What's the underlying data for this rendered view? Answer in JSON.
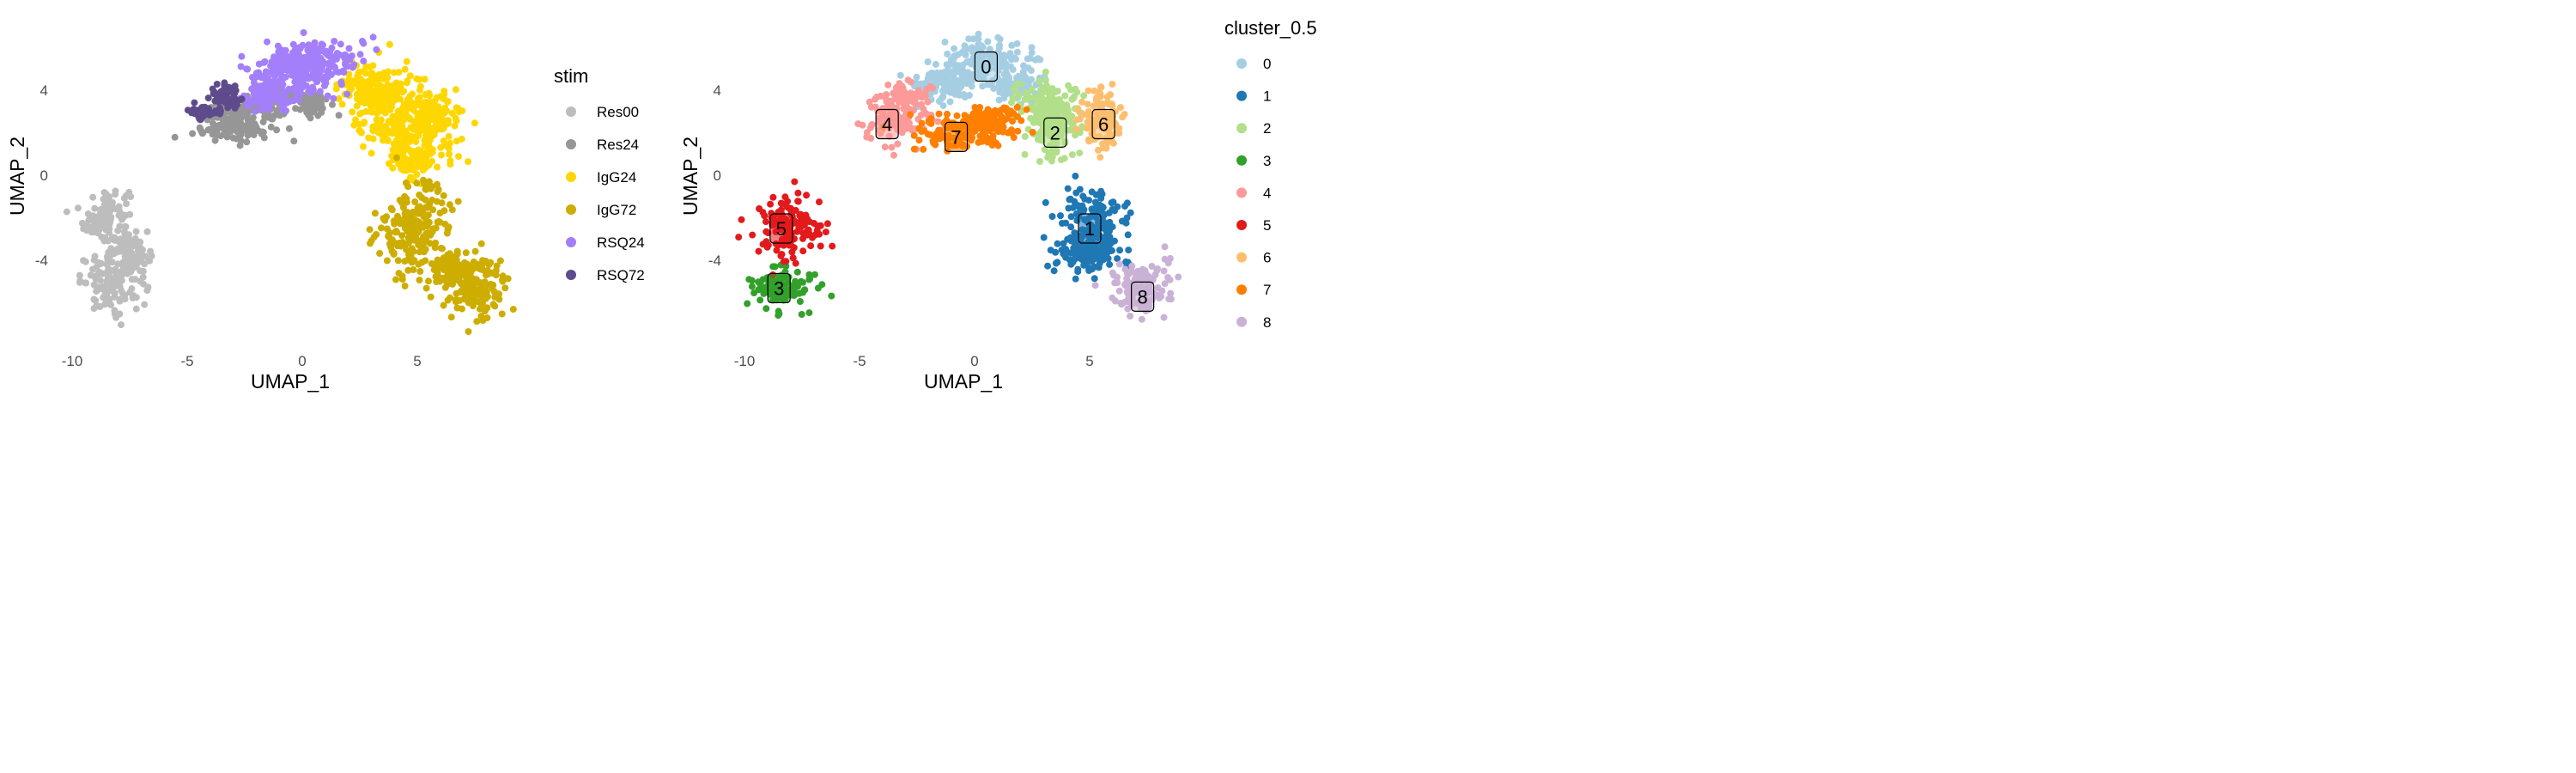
{
  "chart_data": [
    {
      "type": "scatter",
      "xlabel": "UMAP_1",
      "ylabel": "UMAP_2",
      "xlim": [
        -10.5,
        9.5
      ],
      "ylim": [
        -7.2,
        7.0
      ],
      "xticks": [
        -10,
        -5,
        0,
        5
      ],
      "yticks": [
        -4,
        0,
        4
      ],
      "grid": false,
      "legend": {
        "title": "stim",
        "placement": "right",
        "entries": [
          {
            "label": "Res00",
            "color": "#bdbdbd"
          },
          {
            "label": "Res24",
            "color": "#969696"
          },
          {
            "label": "IgG24",
            "color": "#ffd700"
          },
          {
            "label": "IgG72",
            "color": "#cdad00"
          },
          {
            "label": "RSQ24",
            "color": "#a47ffa"
          },
          {
            "label": "RSQ72",
            "color": "#5e4b8b"
          }
        ]
      },
      "series": [
        {
          "name": "Res00",
          "regions": [
            [
              -8.5,
              -2.0,
              0.9,
              1.4
            ],
            [
              -8.2,
              -5.0,
              1.3,
              1.2
            ],
            [
              -7.3,
              -3.6,
              0.6,
              0.8
            ]
          ]
        },
        {
          "name": "Res24",
          "regions": [
            [
              -3.0,
              2.2,
              1.6,
              0.6
            ],
            [
              -2.0,
              3.2,
              1.5,
              0.7
            ],
            [
              0.3,
              3.5,
              0.8,
              0.6
            ]
          ]
        },
        {
          "name": "IgG24",
          "regions": [
            [
              3.8,
              3.0,
              1.5,
              1.8
            ],
            [
              5.6,
              2.4,
              1.3,
              1.6
            ],
            [
              2.8,
              4.2,
              1.0,
              0.8
            ],
            [
              4.7,
              0.8,
              1.0,
              0.8
            ]
          ]
        },
        {
          "name": "IgG72",
          "regions": [
            [
              5.0,
              -2.6,
              1.5,
              1.9
            ],
            [
              7.5,
              -5.2,
              1.3,
              1.2
            ],
            [
              6.7,
              -4.4,
              0.8,
              0.7
            ]
          ]
        },
        {
          "name": "RSQ24",
          "regions": [
            [
              0.5,
              5.4,
              1.9,
              1.0
            ],
            [
              -0.3,
              4.7,
              1.8,
              0.9
            ],
            [
              -1.6,
              3.7,
              1.0,
              0.8
            ]
          ]
        },
        {
          "name": "RSQ72",
          "regions": [
            [
              -3.3,
              3.7,
              0.7,
              0.5
            ],
            [
              -4.3,
              3.0,
              0.4,
              0.3
            ]
          ]
        }
      ]
    },
    {
      "type": "scatter",
      "xlabel": "UMAP_1",
      "ylabel": "UMAP_2",
      "xlim": [
        -10.5,
        9.5
      ],
      "ylim": [
        -7.2,
        7.0
      ],
      "xticks": [
        -10,
        -5,
        0,
        5
      ],
      "yticks": [
        -4,
        0,
        4
      ],
      "grid": false,
      "legend": {
        "title": "cluster_0.5",
        "placement": "right",
        "entries": [
          {
            "label": "0",
            "color": "#a6cee3"
          },
          {
            "label": "1",
            "color": "#1f78b4"
          },
          {
            "label": "2",
            "color": "#b2df8a"
          },
          {
            "label": "3",
            "color": "#33a02c"
          },
          {
            "label": "4",
            "color": "#fb9a99"
          },
          {
            "label": "5",
            "color": "#e31a1c"
          },
          {
            "label": "6",
            "color": "#fdbf6f"
          },
          {
            "label": "7",
            "color": "#ff7f00"
          },
          {
            "label": "8",
            "color": "#cab2d6"
          }
        ]
      },
      "series": [
        {
          "name": "0",
          "regions": [
            [
              0.3,
              5.3,
              1.8,
              1.1
            ],
            [
              -1.5,
              4.3,
              1.1,
              0.8
            ],
            [
              1.8,
              4.3,
              1.2,
              0.7
            ]
          ]
        },
        {
          "name": "1",
          "regions": [
            [
              5.1,
              -2.3,
              1.3,
              1.4
            ],
            [
              4.9,
              -3.7,
              1.4,
              0.8
            ]
          ]
        },
        {
          "name": "2",
          "regions": [
            [
              3.4,
              2.3,
              1.0,
              1.6
            ],
            [
              3.0,
              3.4,
              1.1,
              0.8
            ]
          ]
        },
        {
          "name": "3",
          "regions": [
            [
              -8.3,
              -5.3,
              1.2,
              0.9
            ]
          ]
        },
        {
          "name": "4",
          "regions": [
            [
              -3.5,
              2.5,
              1.2,
              0.9
            ],
            [
              -2.9,
              3.7,
              1.1,
              0.6
            ]
          ]
        },
        {
          "name": "5",
          "regions": [
            [
              -8.0,
              -2.4,
              1.3,
              1.3
            ]
          ]
        },
        {
          "name": "6",
          "regions": [
            [
              5.5,
              2.5,
              0.8,
              1.5
            ]
          ]
        },
        {
          "name": "7",
          "regions": [
            [
              -0.5,
              2.0,
              1.9,
              0.8
            ],
            [
              0.5,
              2.6,
              1.2,
              0.6
            ]
          ]
        },
        {
          "name": "8",
          "regions": [
            [
              7.2,
              -5.3,
              1.1,
              1.2
            ]
          ]
        }
      ],
      "cluster_labels": [
        {
          "label": "0",
          "x": 0.5,
          "y": 5.1
        },
        {
          "label": "1",
          "x": 5.0,
          "y": -2.5
        },
        {
          "label": "2",
          "x": 3.5,
          "y": 2.0
        },
        {
          "label": "3",
          "x": -8.5,
          "y": -5.3
        },
        {
          "label": "4",
          "x": -3.8,
          "y": 2.4
        },
        {
          "label": "5",
          "x": -8.4,
          "y": -2.5
        },
        {
          "label": "6",
          "x": 5.6,
          "y": 2.4
        },
        {
          "label": "7",
          "x": -0.8,
          "y": 1.8
        },
        {
          "label": "8",
          "x": 7.3,
          "y": -5.7
        }
      ]
    }
  ]
}
